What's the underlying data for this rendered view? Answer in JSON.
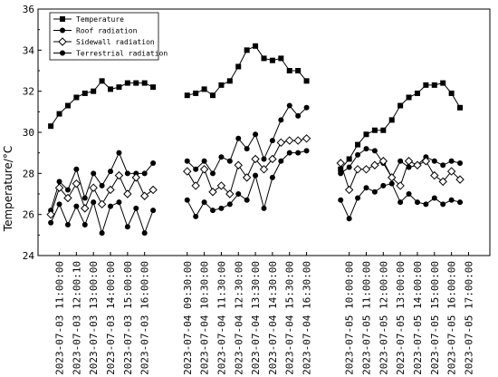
{
  "chart_data": {
    "type": "line",
    "ylabel": "Temperature/°C",
    "xlabel": "",
    "ylim": [
      24,
      36
    ],
    "yticks": [
      24,
      26,
      28,
      30,
      32,
      34,
      36
    ],
    "grid": false,
    "legend_position": "top-left",
    "x_tick_labels": [
      "2023-07-03  11:00:00",
      "2023-07-03  12:00:10",
      "2023-07-03  13:00:00",
      "2023-07-03  14:00:00",
      "2023-07-03  15:00:00",
      "2023-07-03  16:00:00",
      "2023-07-04  09:30:00",
      "2023-07-04  10:30:00",
      "2023-07-04  11:30:00",
      "2023-07-04  12:30:00",
      "2023-07-04  13:30:00",
      "2023-07-04  14:30:00",
      "2023-07-04  15:30:00",
      "2023-07-04  16:30:00",
      "2023-07-05  10:00:00",
      "2023-07-05  11:00:00",
      "2023-07-05  12:00:00",
      "2023-07-05  13:00:00",
      "2023-07-05  14:00:00",
      "2023-07-05  15:00:00",
      "2023-07-05  16:00:00",
      "2023-07-05  17:00:00"
    ],
    "x_tick_positions": [
      1,
      3,
      5,
      7,
      9,
      11,
      16,
      18,
      20,
      22,
      24,
      26,
      28,
      30,
      35,
      37,
      39,
      41,
      43,
      45,
      47,
      49
    ],
    "xlim": [
      -1.5,
      51.5
    ],
    "segments": [
      {
        "x": [
          0,
          1,
          2,
          3,
          4,
          5,
          6,
          7,
          8,
          9,
          10,
          11,
          12
        ]
      },
      {
        "x": [
          16,
          17,
          18,
          19,
          20,
          21,
          22,
          23,
          24,
          25,
          26,
          27,
          28,
          29,
          30
        ]
      },
      {
        "x": [
          34,
          35,
          36,
          37,
          38,
          39,
          40,
          41,
          42,
          43,
          44,
          45,
          46,
          47,
          48
        ]
      }
    ],
    "series": [
      {
        "name": "Temperature",
        "marker": "square",
        "values": [
          [
            30.3,
            30.9,
            31.3,
            31.7,
            31.9,
            32.0,
            32.5,
            32.1,
            32.2,
            32.4,
            32.4,
            32.4,
            32.2
          ],
          [
            31.8,
            31.9,
            32.1,
            31.8,
            32.3,
            32.5,
            33.2,
            34.0,
            34.2,
            33.6,
            33.5,
            33.6,
            33.0,
            33.0,
            32.5
          ],
          [
            28.2,
            28.7,
            29.4,
            29.9,
            30.1,
            30.1,
            30.6,
            31.3,
            31.7,
            31.9,
            32.3,
            32.3,
            32.4,
            31.9,
            31.2
          ]
        ]
      },
      {
        "name": "Roof radiation",
        "marker": "circle-filled",
        "values": [
          [
            26.2,
            27.6,
            27.2,
            28.2,
            26.8,
            28.0,
            27.4,
            28.1,
            29.0,
            28.0,
            28.0,
            28.0,
            28.5
          ],
          [
            28.6,
            28.2,
            28.6,
            28.0,
            28.8,
            28.6,
            29.7,
            29.2,
            29.9,
            28.7,
            29.6,
            30.6,
            31.3,
            30.8,
            31.2
          ],
          [
            28.0,
            28.3,
            28.9,
            29.2,
            29.1,
            28.5,
            27.8,
            28.6,
            28.3,
            28.4,
            28.8,
            28.6,
            28.4,
            28.6,
            28.5
          ]
        ]
      },
      {
        "name": "Sidewall radiation",
        "marker": "diamond-open",
        "values": [
          [
            26.0,
            27.3,
            26.8,
            27.5,
            26.3,
            27.3,
            26.5,
            27.2,
            27.9,
            27.0,
            27.8,
            26.9,
            27.2
          ],
          [
            28.1,
            27.4,
            28.2,
            27.1,
            27.4,
            27.0,
            28.4,
            27.8,
            28.7,
            28.2,
            28.7,
            29.5,
            29.6,
            29.6,
            29.7
          ],
          [
            28.5,
            27.2,
            28.2,
            28.2,
            28.4,
            28.6,
            27.8,
            27.4,
            28.6,
            28.4,
            28.6,
            27.9,
            27.6,
            28.1,
            27.7
          ]
        ]
      },
      {
        "name": "Terrestrial radiation",
        "marker": "circle-filled",
        "values": [
          [
            25.6,
            26.5,
            25.5,
            26.4,
            25.5,
            26.6,
            25.1,
            26.4,
            26.6,
            25.4,
            26.3,
            25.1,
            26.2
          ],
          [
            26.7,
            25.9,
            26.6,
            26.2,
            26.3,
            26.5,
            27.0,
            26.7,
            27.9,
            26.3,
            27.8,
            28.6,
            29.0,
            29.0,
            29.1
          ],
          [
            26.7,
            25.8,
            26.8,
            27.3,
            27.1,
            27.4,
            27.5,
            26.6,
            27.0,
            26.6,
            26.5,
            26.8,
            26.5,
            26.7,
            26.6
          ]
        ]
      }
    ]
  }
}
